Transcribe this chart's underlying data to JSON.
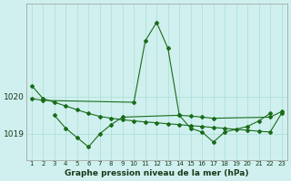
{
  "title": "Graphe pression niveau de la mer (hPa)",
  "background_color": "#cff0ee",
  "grid_color": "#aaddd8",
  "line_color": "#1a6b1a",
  "x_labels": [
    "1",
    "2",
    "3",
    "4",
    "5",
    "6",
    "7",
    "8",
    "9",
    "10",
    "11",
    "12",
    "13",
    "14",
    "15",
    "16",
    "17",
    "18",
    "19",
    "20",
    "21",
    "22",
    "23"
  ],
  "x_values": [
    1,
    2,
    3,
    4,
    5,
    6,
    7,
    8,
    9,
    10,
    11,
    12,
    13,
    14,
    15,
    16,
    17,
    18,
    19,
    20,
    21,
    22,
    23
  ],
  "line1": [
    1020.3,
    1019.95,
    1019.85,
    1019.75,
    1019.65,
    1019.55,
    1019.47,
    1019.42,
    1019.38,
    1019.35,
    1019.32,
    1019.3,
    1019.27,
    1019.25,
    1019.22,
    1019.2,
    1019.17,
    1019.15,
    1019.12,
    1019.1,
    1019.07,
    1019.05,
    1019.55
  ],
  "line2_x": [
    1,
    2,
    10,
    11,
    12,
    13,
    14,
    15,
    16,
    17,
    22,
    23
  ],
  "line2_y": [
    1019.95,
    1019.9,
    1019.85,
    1021.5,
    1022.0,
    1021.3,
    1019.5,
    1019.48,
    1019.45,
    1019.42,
    1019.45,
    1019.6
  ],
  "line3_x": [
    3,
    4,
    5,
    6,
    7,
    8,
    9,
    14,
    15,
    16,
    17,
    18,
    20,
    21,
    22
  ],
  "line3_y": [
    1019.5,
    1019.15,
    1018.9,
    1018.65,
    1019.0,
    1019.25,
    1019.45,
    1019.5,
    1019.15,
    1019.05,
    1018.78,
    1019.05,
    1019.2,
    1019.35,
    1019.55
  ],
  "ylim_lo": 1018.3,
  "ylim_hi": 1022.5,
  "ytick1": 1019.0,
  "ytick2": 1020.0
}
